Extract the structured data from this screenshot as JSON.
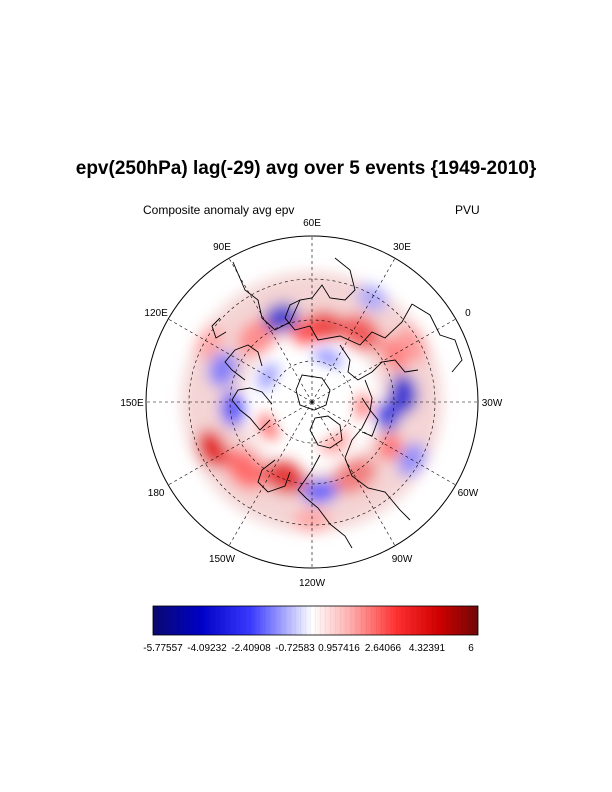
{
  "plot": {
    "title": "epv(250hPa) lag(-29) avg over 5 events {1949-2010}",
    "subtitle_left": "Composite anomaly avg epv",
    "subtitle_right": "PVU"
  },
  "map": {
    "projection": "polar stereographic (north)",
    "longitude_labels": [
      "60E",
      "30E",
      "0",
      "30W",
      "60W",
      "90W",
      "120W",
      "150W",
      "180",
      "150E",
      "120E",
      "90E"
    ],
    "field_description": "alternating red/blue epv anomaly pattern in annular band around the pole"
  },
  "colorbar": {
    "tick_labels": [
      "-5.77557",
      "-4.09232",
      "-2.40908",
      "-0.72583",
      "0.957416",
      "2.64066",
      "4.32391",
      "6"
    ],
    "min": -5.77557,
    "max": 6,
    "low_color": "#0a0a70",
    "mid_color": "#ffffff",
    "high_color": "#700808"
  }
}
